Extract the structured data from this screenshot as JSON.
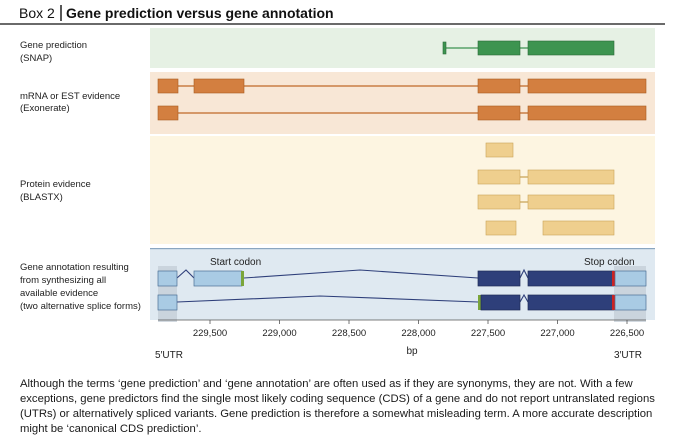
{
  "box": {
    "label": "Box 2",
    "title": "Gene prediction versus gene annotation"
  },
  "rows": {
    "snap": {
      "line1": "Gene prediction",
      "line2": "(SNAP)"
    },
    "mrna": {
      "line1": "mRNA or EST evidence",
      "line2": "(Exonerate)"
    },
    "protein": {
      "line1": "Protein evidence",
      "line2": "(BLASTX)"
    },
    "annotation": {
      "line1": "Gene annotation resulting",
      "line2": "from synthesizing all",
      "line3": "available evidence",
      "line4": "(two alternative splice forms)"
    }
  },
  "labels": {
    "start_codon": "Start codon",
    "stop_codon": "Stop codon",
    "utr5": "5′UTR",
    "utr3": "3′UTR"
  },
  "axis": {
    "ticks": [
      "229,500",
      "229,000",
      "228,500",
      "228,000",
      "227,500",
      "227,000",
      "226,500"
    ],
    "unit": "bp"
  },
  "caption": "Although the terms ‘gene prediction’ and ‘gene annotation’ are often used as if they are synonyms, they are not. With a few exceptions, gene predictors find the single most likely coding sequence (CDS) of a gene and do not report untranslated regions (UTRs) or alternatively spliced variants. Gene prediction is therefore a somewhat misleading term. A more accurate description might be ‘canonical CDS prediction’.",
  "colors": {
    "snap_band": "#e6f1e4",
    "mrna_band": "#f8e7d6",
    "protein_band": "#fdf5e1",
    "annot_band": "#dfe9f1",
    "snap_exon": "#3d9450",
    "mrna_exon": "#d37f40",
    "protein_exon": "#efcf8e",
    "cds": "#2e3f7a",
    "utr": "#a9cbe4",
    "start_mark": "#7aa53a",
    "stop_mark": "#cc2222"
  }
}
